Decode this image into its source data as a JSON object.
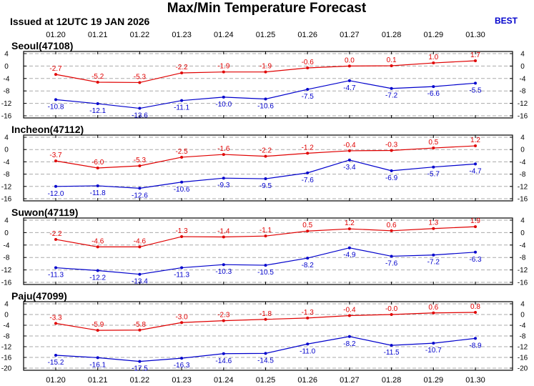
{
  "header": {
    "title": "Max/Min Temperature Forecast",
    "issued": "Issued at 12UTC 19 JAN 2026",
    "model": "BEST"
  },
  "colors": {
    "max": "#e00000",
    "min": "#0000cc",
    "grid": "#aaaaaa"
  },
  "chart_data": [
    {
      "type": "line",
      "title": "Seoul(47108)",
      "categories": [
        "01.20",
        "01.21",
        "01.22",
        "01.23",
        "01.24",
        "01.25",
        "01.26",
        "01.27",
        "01.28",
        "01.29",
        "01.30"
      ],
      "ylim": [
        -16,
        4
      ],
      "yticks": [
        "4",
        "0",
        "-4",
        "-8",
        "-12",
        "-16"
      ],
      "grid": true,
      "series": [
        {
          "key": "max",
          "values": [
            -2.7,
            -5.2,
            -5.3,
            -2.2,
            -1.9,
            -1.9,
            -0.6,
            0.0,
            0.1,
            1.0,
            1.7
          ],
          "labels": [
            "-2.7",
            "-5.2",
            "-5.3",
            "-2.2",
            "-1.9",
            "-1.9",
            "-0.6",
            "0.0",
            "0.1",
            "1.0",
            "1.7"
          ]
        },
        {
          "key": "min",
          "values": [
            -10.8,
            -12.1,
            -13.6,
            -11.1,
            -10.0,
            -10.6,
            -7.5,
            -4.7,
            -7.2,
            -6.6,
            -5.5
          ],
          "labels": [
            "-10.8",
            "-12.1",
            "-13.6",
            "-11.1",
            "-10.0",
            "-10.6",
            "-7.5",
            "-4.7",
            "-7.2",
            "-6.6",
            "-5.5"
          ]
        }
      ]
    },
    {
      "type": "line",
      "title": "Incheon(47112)",
      "categories": [
        "01.20",
        "01.21",
        "01.22",
        "01.23",
        "01.24",
        "01.25",
        "01.26",
        "01.27",
        "01.28",
        "01.29",
        "01.30"
      ],
      "ylim": [
        -16,
        4
      ],
      "yticks": [
        "4",
        "0",
        "-4",
        "-8",
        "-12",
        "-16"
      ],
      "grid": true,
      "series": [
        {
          "key": "max",
          "values": [
            -3.7,
            -6.0,
            -5.3,
            -2.5,
            -1.6,
            -2.2,
            -1.2,
            -0.4,
            -0.3,
            0.5,
            1.2
          ],
          "labels": [
            "-3.7",
            "-6.0",
            "-5.3",
            "-2.5",
            "-1.6",
            "-2.2",
            "-1.2",
            "-0.4",
            "-0.3",
            "0.5",
            "1.2"
          ]
        },
        {
          "key": "min",
          "values": [
            -12.0,
            -11.8,
            -12.6,
            -10.6,
            -9.3,
            -9.5,
            -7.6,
            -3.4,
            -6.9,
            -5.7,
            -4.7
          ],
          "labels": [
            "-12.0",
            "-11.8",
            "-12.6",
            "-10.6",
            "-9.3",
            "-9.5",
            "-7.6",
            "-3.4",
            "-6.9",
            "-5.7",
            "-4.7"
          ]
        }
      ]
    },
    {
      "type": "line",
      "title": "Suwon(47119)",
      "categories": [
        "01.20",
        "01.21",
        "01.22",
        "01.23",
        "01.24",
        "01.25",
        "01.26",
        "01.27",
        "01.28",
        "01.29",
        "01.30"
      ],
      "ylim": [
        -16,
        4
      ],
      "yticks": [
        "4",
        "0",
        "-4",
        "-8",
        "-12",
        "-16"
      ],
      "grid": true,
      "series": [
        {
          "key": "max",
          "values": [
            -2.2,
            -4.6,
            -4.6,
            -1.3,
            -1.4,
            -1.1,
            0.5,
            1.2,
            0.6,
            1.3,
            1.9
          ],
          "labels": [
            "-2.2",
            "-4.6",
            "-4.6",
            "-1.3",
            "-1.4",
            "-1.1",
            "0.5",
            "1.2",
            "0.6",
            "1.3",
            "1.9"
          ]
        },
        {
          "key": "min",
          "values": [
            -11.3,
            -12.2,
            -13.4,
            -11.3,
            -10.3,
            -10.5,
            -8.2,
            -4.9,
            -7.6,
            -7.2,
            -6.3
          ],
          "labels": [
            "-11.3",
            "-12.2",
            "-13.4",
            "-11.3",
            "-10.3",
            "-10.5",
            "-8.2",
            "-4.9",
            "-7.6",
            "-7.2",
            "-6.3"
          ]
        }
      ]
    },
    {
      "type": "line",
      "title": "Paju(47099)",
      "categories": [
        "01.20",
        "01.21",
        "01.22",
        "01.23",
        "01.24",
        "01.25",
        "01.26",
        "01.27",
        "01.28",
        "01.29",
        "01.30"
      ],
      "ylim": [
        -20,
        4
      ],
      "yticks": [
        "4",
        "0",
        "-4",
        "-8",
        "-12",
        "-16",
        "-20"
      ],
      "grid": true,
      "series": [
        {
          "key": "max",
          "values": [
            -3.3,
            -5.9,
            -5.8,
            -3.0,
            -2.3,
            -1.8,
            -1.3,
            -0.4,
            -0.0,
            0.6,
            0.8
          ],
          "labels": [
            "-3.3",
            "-5.9",
            "-5.8",
            "-3.0",
            "-2.3",
            "-1.8",
            "-1.3",
            "-0.4",
            "-0.0",
            "0.6",
            "0.8"
          ]
        },
        {
          "key": "min",
          "values": [
            -15.2,
            -16.1,
            -17.5,
            -16.3,
            -14.6,
            -14.5,
            -11.0,
            -8.2,
            -11.5,
            -10.7,
            -8.9
          ],
          "labels": [
            "-15.2",
            "-16.1",
            "-17.5",
            "-16.3",
            "-14.6",
            "-14.5",
            "-11.0",
            "-8.2",
            "-11.5",
            "-10.7",
            "-8.9"
          ]
        }
      ]
    }
  ]
}
